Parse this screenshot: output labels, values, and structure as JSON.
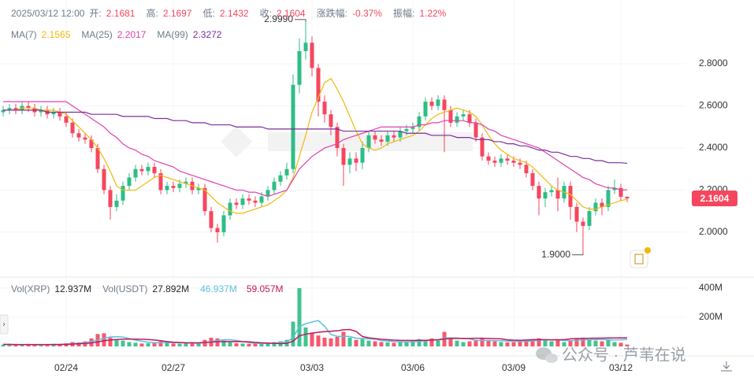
{
  "chart_data": {
    "type": "candlestick",
    "time": "2025/03/12 12:00",
    "summary_labels": [
      "开:",
      "高:",
      "低:",
      "收:",
      "涨跌幅:",
      "振幅:"
    ],
    "change": "-0.37%",
    "amplitude": "1.22%",
    "up_color": "#2ebd85",
    "down_color": "#f6465d",
    "categories": [
      null,
      null,
      null,
      null,
      null,
      null,
      null,
      null,
      null,
      null,
      "02/24",
      null,
      null,
      null,
      null,
      null,
      null,
      null,
      null,
      null,
      null,
      null,
      null,
      null,
      null,
      null,
      null,
      "02/27",
      null,
      null,
      null,
      null,
      null,
      null,
      null,
      null,
      null,
      null,
      null,
      null,
      null,
      null,
      null,
      null,
      null,
      null,
      null,
      null,
      null,
      "03/03",
      null,
      null,
      null,
      null,
      null,
      null,
      null,
      null,
      null,
      null,
      null,
      null,
      null,
      null,
      null,
      "03/06",
      null,
      null,
      null,
      null,
      null,
      null,
      null,
      null,
      null,
      null,
      null,
      null,
      null,
      null,
      null,
      "03/09",
      null,
      null,
      null,
      null,
      null,
      null,
      null,
      null,
      null,
      null,
      null,
      null,
      null,
      null,
      null,
      null,
      "03/12",
      null
    ],
    "open": [
      2.57,
      2.58,
      2.59,
      2.58,
      2.6,
      2.59,
      2.57,
      2.58,
      2.56,
      2.57,
      2.55,
      2.52,
      2.47,
      2.45,
      2.44,
      2.4,
      2.3,
      2.2,
      2.12,
      2.15,
      2.22,
      2.26,
      2.3,
      2.29,
      2.31,
      2.28,
      2.2,
      2.22,
      2.21,
      2.23,
      2.24,
      2.2,
      2.21,
      2.1,
      2.02,
      2.0,
      2.08,
      2.14,
      2.13,
      2.16,
      2.15,
      2.14,
      2.17,
      2.2,
      2.24,
      2.27,
      2.3,
      2.7,
      2.86,
      2.9,
      2.78,
      2.62,
      2.56,
      2.5,
      2.4,
      2.32,
      2.35,
      2.33,
      2.4,
      2.46,
      2.44,
      2.43,
      2.46,
      2.45,
      2.48,
      2.49,
      2.5,
      2.55,
      2.62,
      2.6,
      2.63,
      2.58,
      2.52,
      2.55,
      2.56,
      2.52,
      2.45,
      2.36,
      2.34,
      2.33,
      2.35,
      2.34,
      2.33,
      2.32,
      2.28,
      2.22,
      2.16,
      2.19,
      2.2,
      2.16,
      2.22,
      2.12,
      2.05,
      2.03,
      2.1,
      2.14,
      2.12,
      2.2,
      2.21,
      2.1681
    ],
    "high": [
      2.6,
      2.61,
      2.61,
      2.62,
      2.62,
      2.61,
      2.6,
      2.6,
      2.59,
      2.59,
      2.57,
      2.54,
      2.49,
      2.47,
      2.46,
      2.42,
      2.32,
      2.22,
      2.18,
      2.24,
      2.28,
      2.32,
      2.32,
      2.33,
      2.33,
      2.3,
      2.24,
      2.24,
      2.25,
      2.26,
      2.26,
      2.23,
      2.23,
      2.12,
      2.04,
      2.1,
      2.16,
      2.16,
      2.18,
      2.18,
      2.17,
      2.19,
      2.22,
      2.26,
      2.29,
      2.33,
      2.75,
      2.92,
      2.999,
      2.93,
      2.8,
      2.65,
      2.58,
      2.52,
      2.42,
      2.38,
      2.38,
      2.43,
      2.48,
      2.48,
      2.46,
      2.48,
      2.48,
      2.5,
      2.51,
      2.52,
      2.57,
      2.64,
      2.64,
      2.65,
      2.65,
      2.6,
      2.57,
      2.58,
      2.58,
      2.54,
      2.47,
      2.38,
      2.36,
      2.37,
      2.37,
      2.36,
      2.35,
      2.34,
      2.3,
      2.24,
      2.21,
      2.22,
      2.26,
      2.24,
      2.24,
      2.14,
      2.07,
      2.12,
      2.16,
      2.16,
      2.22,
      2.25,
      2.23,
      2.1697
    ],
    "low": [
      2.55,
      2.56,
      2.56,
      2.56,
      2.57,
      2.55,
      2.55,
      2.54,
      2.54,
      2.53,
      2.5,
      2.45,
      2.43,
      2.42,
      2.38,
      2.28,
      2.18,
      2.06,
      2.1,
      2.13,
      2.2,
      2.24,
      2.27,
      2.27,
      2.26,
      2.18,
      2.18,
      2.19,
      2.19,
      2.21,
      2.18,
      2.18,
      2.08,
      2.0,
      1.95,
      1.98,
      2.06,
      2.11,
      2.11,
      2.13,
      2.12,
      2.12,
      2.15,
      2.18,
      2.22,
      2.25,
      2.28,
      2.66,
      2.82,
      2.74,
      2.55,
      2.52,
      2.46,
      2.36,
      2.22,
      2.28,
      2.29,
      2.3,
      2.38,
      2.42,
      2.41,
      2.41,
      2.43,
      2.43,
      2.46,
      2.47,
      2.48,
      2.53,
      2.58,
      2.58,
      2.38,
      2.5,
      2.5,
      2.53,
      2.5,
      2.43,
      2.34,
      2.32,
      2.31,
      2.31,
      2.32,
      2.31,
      2.3,
      2.26,
      2.2,
      2.08,
      2.12,
      2.17,
      2.1,
      2.14,
      2.06,
      2.0,
      1.9,
      2.01,
      2.08,
      2.08,
      2.1,
      2.18,
      2.15,
      2.1432
    ],
    "close": [
      2.58,
      2.59,
      2.58,
      2.6,
      2.59,
      2.57,
      2.58,
      2.56,
      2.57,
      2.55,
      2.52,
      2.47,
      2.45,
      2.44,
      2.4,
      2.3,
      2.2,
      2.12,
      2.15,
      2.22,
      2.26,
      2.3,
      2.29,
      2.31,
      2.28,
      2.2,
      2.22,
      2.21,
      2.23,
      2.24,
      2.2,
      2.21,
      2.1,
      2.02,
      2.0,
      2.08,
      2.14,
      2.13,
      2.16,
      2.15,
      2.14,
      2.17,
      2.2,
      2.24,
      2.27,
      2.3,
      2.7,
      2.86,
      2.9,
      2.78,
      2.62,
      2.56,
      2.5,
      2.4,
      2.32,
      2.35,
      2.33,
      2.4,
      2.46,
      2.44,
      2.43,
      2.46,
      2.45,
      2.48,
      2.49,
      2.5,
      2.55,
      2.62,
      2.6,
      2.63,
      2.58,
      2.52,
      2.55,
      2.56,
      2.52,
      2.45,
      2.36,
      2.34,
      2.33,
      2.35,
      2.34,
      2.33,
      2.32,
      2.28,
      2.22,
      2.16,
      2.19,
      2.2,
      2.16,
      2.22,
      2.12,
      2.05,
      2.03,
      2.1,
      2.14,
      2.12,
      2.2,
      2.21,
      2.1681,
      2.1604
    ],
    "ma": [
      {
        "name": "MA(7)",
        "color": "#f0b90b",
        "values": [
          2.58,
          2.58,
          2.58,
          2.59,
          2.59,
          2.59,
          2.58,
          2.58,
          2.58,
          2.57,
          2.56,
          2.53,
          2.5,
          2.47,
          2.44,
          2.4,
          2.35,
          2.29,
          2.22,
          2.2,
          2.2,
          2.2,
          2.22,
          2.24,
          2.26,
          2.27,
          2.26,
          2.25,
          2.24,
          2.23,
          2.22,
          2.21,
          2.2,
          2.17,
          2.14,
          2.12,
          2.1,
          2.09,
          2.09,
          2.1,
          2.11,
          2.12,
          2.13,
          2.15,
          2.17,
          2.2,
          2.26,
          2.36,
          2.46,
          2.57,
          2.64,
          2.71,
          2.73,
          2.68,
          2.62,
          2.55,
          2.48,
          2.42,
          2.4,
          2.39,
          2.4,
          2.42,
          2.43,
          2.44,
          2.45,
          2.46,
          2.48,
          2.51,
          2.54,
          2.56,
          2.57,
          2.58,
          2.59,
          2.58,
          2.57,
          2.55,
          2.51,
          2.46,
          2.42,
          2.39,
          2.37,
          2.35,
          2.34,
          2.33,
          2.31,
          2.28,
          2.25,
          2.22,
          2.2,
          2.19,
          2.18,
          2.15,
          2.12,
          2.11,
          2.11,
          2.12,
          2.13,
          2.14,
          2.15,
          2.1565
        ]
      },
      {
        "name": "MA(25)",
        "color": "#e040b0",
        "values": [
          2.62,
          2.62,
          2.62,
          2.62,
          2.62,
          2.62,
          2.62,
          2.62,
          2.62,
          2.62,
          2.62,
          2.6,
          2.58,
          2.56,
          2.54,
          2.52,
          2.5,
          2.47,
          2.45,
          2.42,
          2.4,
          2.39,
          2.37,
          2.36,
          2.34,
          2.33,
          2.32,
          2.31,
          2.29,
          2.28,
          2.27,
          2.26,
          2.25,
          2.24,
          2.23,
          2.22,
          2.21,
          2.2,
          2.2,
          2.19,
          2.19,
          2.18,
          2.17,
          2.18,
          2.19,
          2.2,
          2.25,
          2.3,
          2.33,
          2.36,
          2.38,
          2.4,
          2.41,
          2.42,
          2.44,
          2.45,
          2.46,
          2.47,
          2.48,
          2.49,
          2.5,
          2.5,
          2.5,
          2.5,
          2.5,
          2.5,
          2.51,
          2.51,
          2.52,
          2.52,
          2.53,
          2.53,
          2.53,
          2.53,
          2.52,
          2.52,
          2.51,
          2.49,
          2.48,
          2.46,
          2.45,
          2.44,
          2.43,
          2.42,
          2.41,
          2.4,
          2.38,
          2.36,
          2.34,
          2.32,
          2.3,
          2.28,
          2.26,
          2.25,
          2.23,
          2.22,
          2.21,
          2.21,
          2.2,
          2.2017
        ]
      },
      {
        "name": "MA(99)",
        "color": "#7b2d9e",
        "values": [
          2.58,
          2.58,
          2.58,
          2.58,
          2.58,
          2.58,
          2.58,
          2.57,
          2.57,
          2.57,
          2.57,
          2.57,
          2.57,
          2.57,
          2.56,
          2.56,
          2.56,
          2.56,
          2.56,
          2.55,
          2.55,
          2.55,
          2.55,
          2.55,
          2.54,
          2.54,
          2.54,
          2.53,
          2.53,
          2.53,
          2.52,
          2.52,
          2.52,
          2.51,
          2.51,
          2.51,
          2.51,
          2.5,
          2.5,
          2.5,
          2.5,
          2.5,
          2.49,
          2.49,
          2.49,
          2.49,
          2.49,
          2.49,
          2.49,
          2.49,
          2.49,
          2.49,
          2.49,
          2.49,
          2.48,
          2.48,
          2.48,
          2.48,
          2.48,
          2.48,
          2.48,
          2.48,
          2.48,
          2.48,
          2.47,
          2.47,
          2.47,
          2.47,
          2.46,
          2.46,
          2.46,
          2.46,
          2.45,
          2.45,
          2.45,
          2.44,
          2.44,
          2.44,
          2.43,
          2.43,
          2.42,
          2.42,
          2.41,
          2.41,
          2.4,
          2.39,
          2.39,
          2.38,
          2.38,
          2.37,
          2.36,
          2.36,
          2.35,
          2.35,
          2.34,
          2.34,
          2.33,
          2.33,
          2.33,
          2.3272
        ]
      }
    ],
    "ylim": [
      1.794,
      3.103
    ],
    "yticks": [
      {
        "value": 2,
        "label": "2.0000"
      },
      {
        "value": 2.2,
        "label": "2.2000"
      },
      {
        "value": 2.4,
        "label": "2.4000"
      },
      {
        "value": 2.6,
        "label": "2.6000"
      },
      {
        "value": 2.8,
        "label": "2.8000"
      }
    ],
    "annotations": [
      {
        "label": "2.9990",
        "value": 2.999
      },
      {
        "label": "1.9000",
        "value": 1.9
      }
    ],
    "volume": [
      12,
      10,
      14,
      11,
      13,
      9,
      12,
      15,
      18,
      14,
      22,
      30,
      28,
      35,
      55,
      85,
      90,
      60,
      45,
      40,
      30,
      25,
      20,
      22,
      28,
      35,
      25,
      20,
      18,
      22,
      20,
      25,
      45,
      60,
      55,
      40,
      28,
      22,
      20,
      18,
      18,
      20,
      25,
      30,
      35,
      45,
      170,
      400,
      130,
      90,
      75,
      60,
      55,
      65,
      100,
      60,
      45,
      50,
      40,
      35,
      30,
      28,
      25,
      30,
      35,
      40,
      50,
      45,
      55,
      40,
      100,
      55,
      40,
      30,
      35,
      45,
      55,
      40,
      35,
      30,
      28,
      30,
      35,
      45,
      50,
      55,
      40,
      35,
      45,
      30,
      40,
      55,
      60,
      45,
      40,
      35,
      50,
      30,
      25,
      12.937
    ],
    "volume_ma": [
      {
        "color": "#5bc0de",
        "values": [
          13,
          12,
          12,
          12,
          12,
          11,
          12,
          12,
          13,
          14,
          16,
          19,
          22,
          26,
          34,
          44,
          56,
          65,
          67,
          64,
          54,
          44,
          36,
          29,
          25,
          26,
          26,
          26,
          25,
          24,
          23,
          21,
          26,
          34,
          41,
          45,
          46,
          41,
          33,
          26,
          21,
          20,
          21,
          23,
          26,
          31,
          60,
          136,
          156,
          167,
          178,
          138,
          82,
          69,
          69,
          68,
          57,
          55,
          52,
          50,
          40,
          37,
          34,
          32,
          30,
          32,
          36,
          38,
          45,
          45,
          58,
          59,
          58,
          54,
          52,
          41,
          41,
          41,
          40,
          39,
          37,
          36,
          34,
          36,
          38,
          43,
          45,
          45,
          46,
          41,
          40,
          41,
          46,
          46,
          48,
          47,
          46,
          44,
          46,
          46.937
        ]
      },
      {
        "color": "#c2185b",
        "values": [
          14,
          14,
          13,
          13,
          13,
          13,
          13,
          13,
          13,
          13,
          14,
          16,
          18,
          20,
          24,
          31,
          39,
          44,
          47,
          50,
          50,
          50,
          49,
          47,
          44,
          39,
          33,
          29,
          27,
          25,
          25,
          25,
          27,
          30,
          33,
          33,
          33,
          34,
          33,
          31,
          28,
          25,
          23,
          21,
          19,
          21,
          36,
          73,
          84,
          91,
          97,
          101,
          104,
          107,
          114,
          116,
          103,
          68,
          59,
          54,
          49,
          46,
          43,
          41,
          41,
          41,
          42,
          42,
          44,
          45,
          51,
          54,
          55,
          55,
          55,
          56,
          56,
          55,
          53,
          52,
          45,
          43,
          42,
          44,
          46,
          47,
          46,
          45,
          46,
          46,
          52,
          54,
          55,
          56,
          57,
          57,
          58,
          58,
          59,
          59.057
        ]
      }
    ],
    "volume_legend": [
      {
        "name": "Vol(XRP)",
        "value": "12.937M"
      },
      {
        "name": "Vol(USDT)",
        "value": "27.892M"
      }
    ],
    "volume_ma_labels": [
      "46.937M",
      "59.057M"
    ],
    "vol_ylim": [
      0,
      459
    ],
    "vol_yticks": [
      {
        "value": 200,
        "label": "200M"
      },
      {
        "value": 400,
        "label": "400M"
      }
    ],
    "watermark": "公众号 · 芦苇在说"
  }
}
